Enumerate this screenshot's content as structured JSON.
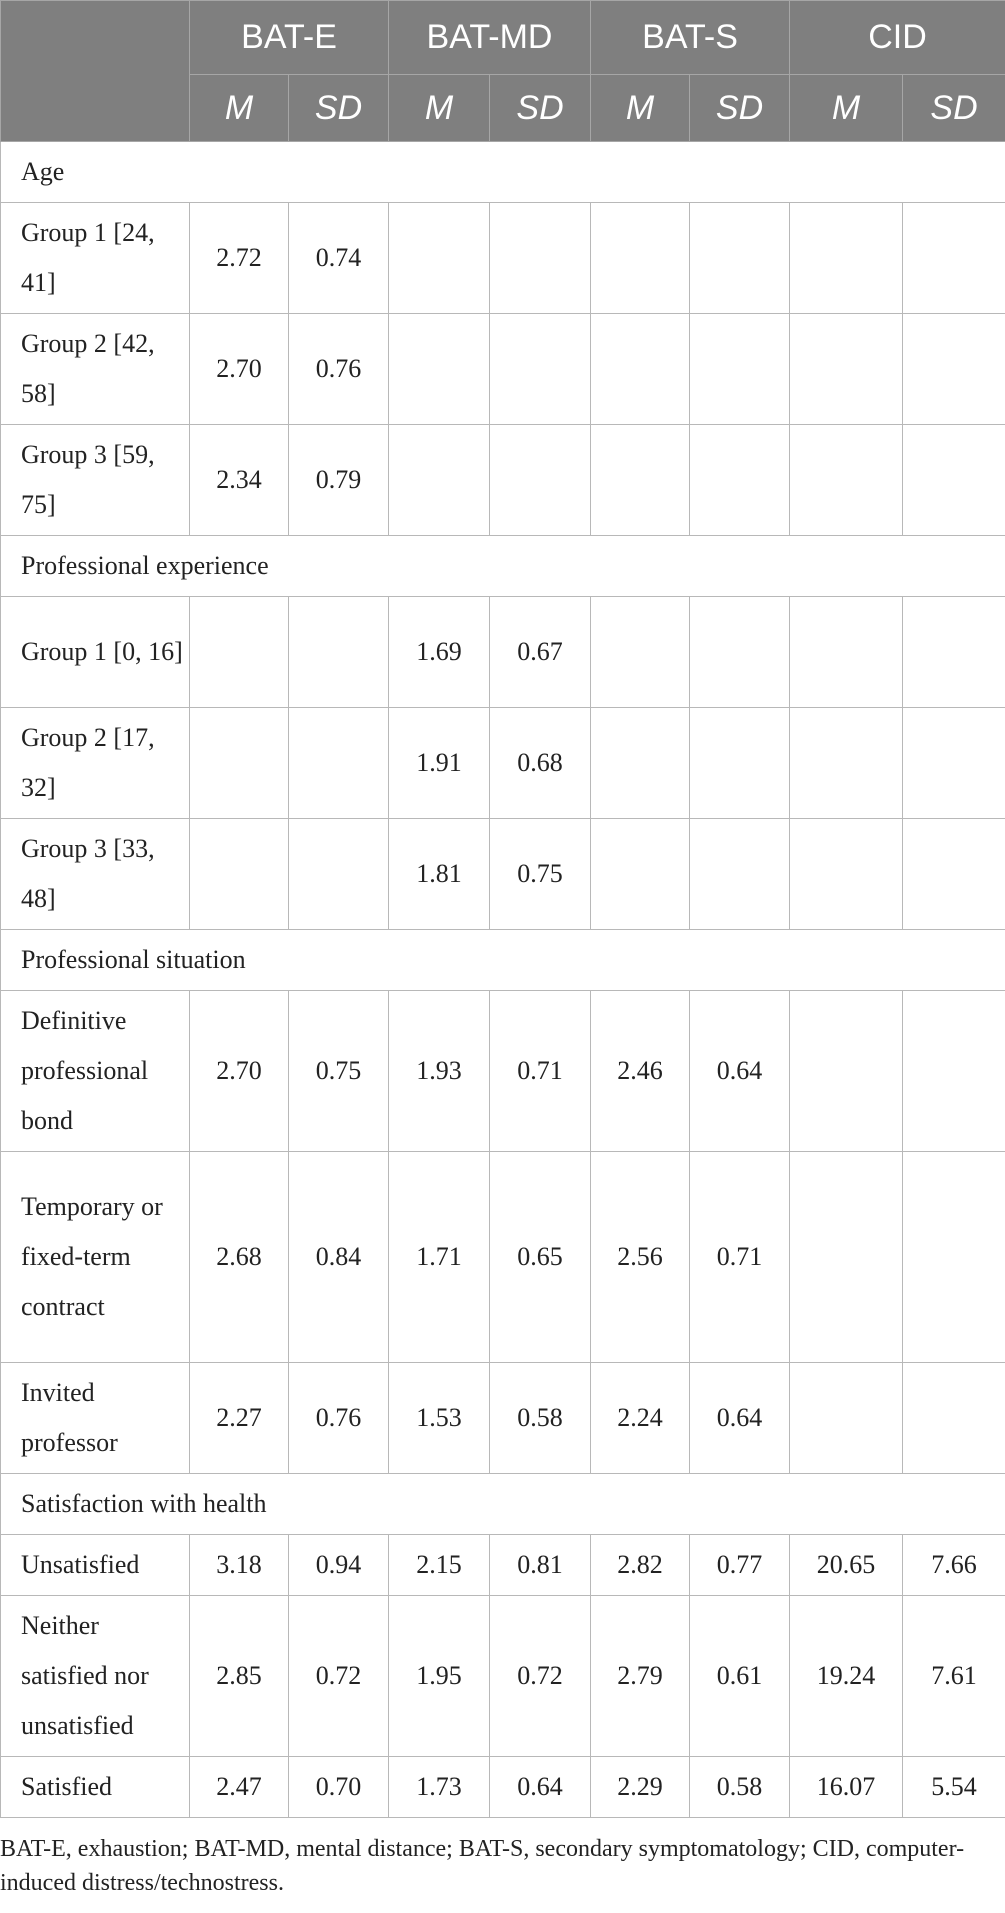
{
  "header": {
    "groups": [
      "BAT-E",
      "BAT-MD",
      "BAT-S",
      "CID"
    ],
    "sub": [
      "M",
      "SD",
      "M",
      "SD",
      "M",
      "SD",
      "M",
      "SD"
    ]
  },
  "sections": [
    {
      "title": "Age",
      "rows": [
        {
          "label": "Group 1 [24, 41]",
          "values": [
            "2.72",
            "0.74",
            "",
            "",
            "",
            "",
            "",
            ""
          ]
        },
        {
          "label": "Group 2 [42, 58]",
          "values": [
            "2.70",
            "0.76",
            "",
            "",
            "",
            "",
            "",
            ""
          ]
        },
        {
          "label": "Group 3 [59, 75]",
          "values": [
            "2.34",
            "0.79",
            "",
            "",
            "",
            "",
            "",
            ""
          ]
        }
      ]
    },
    {
      "title": "Professional experience",
      "rows": [
        {
          "label": "Group 1 [0, 16]",
          "values": [
            "",
            "",
            "1.69",
            "0.67",
            "",
            "",
            "",
            ""
          ]
        },
        {
          "label": "Group 2 [17, 32]",
          "values": [
            "",
            "",
            "1.91",
            "0.68",
            "",
            "",
            "",
            ""
          ]
        },
        {
          "label": "Group 3 [33, 48]",
          "values": [
            "",
            "",
            "1.81",
            "0.75",
            "",
            "",
            "",
            ""
          ]
        }
      ]
    },
    {
      "title": "Professional situation",
      "rows": [
        {
          "label": "Definitive professional bond",
          "values": [
            "2.70",
            "0.75",
            "1.93",
            "0.71",
            "2.46",
            "0.64",
            "",
            ""
          ]
        },
        {
          "label": "Temporary or fixed-term contract",
          "values": [
            "2.68",
            "0.84",
            "1.71",
            "0.65",
            "2.56",
            "0.71",
            "",
            ""
          ]
        },
        {
          "label": "Invited professor",
          "values": [
            "2.27",
            "0.76",
            "1.53",
            "0.58",
            "2.24",
            "0.64",
            "",
            ""
          ]
        }
      ]
    },
    {
      "title": "Satisfaction with health",
      "rows": [
        {
          "label": "Unsatisfied",
          "values": [
            "3.18",
            "0.94",
            "2.15",
            "0.81",
            "2.82",
            "0.77",
            "20.65",
            "7.66"
          ]
        },
        {
          "label": "Neither satisfied nor unsatisfied",
          "values": [
            "2.85",
            "0.72",
            "1.95",
            "0.72",
            "2.79",
            "0.61",
            "19.24",
            "7.61"
          ]
        },
        {
          "label": "Satisfied",
          "values": [
            "2.47",
            "0.70",
            "1.73",
            "0.64",
            "2.29",
            "0.58",
            "16.07",
            "5.54"
          ]
        }
      ]
    }
  ],
  "footnote": "BAT-E, exhaustion; BAT-MD, mental distance; BAT-S, secondary symptomatology; CID, computer-induced distress/technostress."
}
